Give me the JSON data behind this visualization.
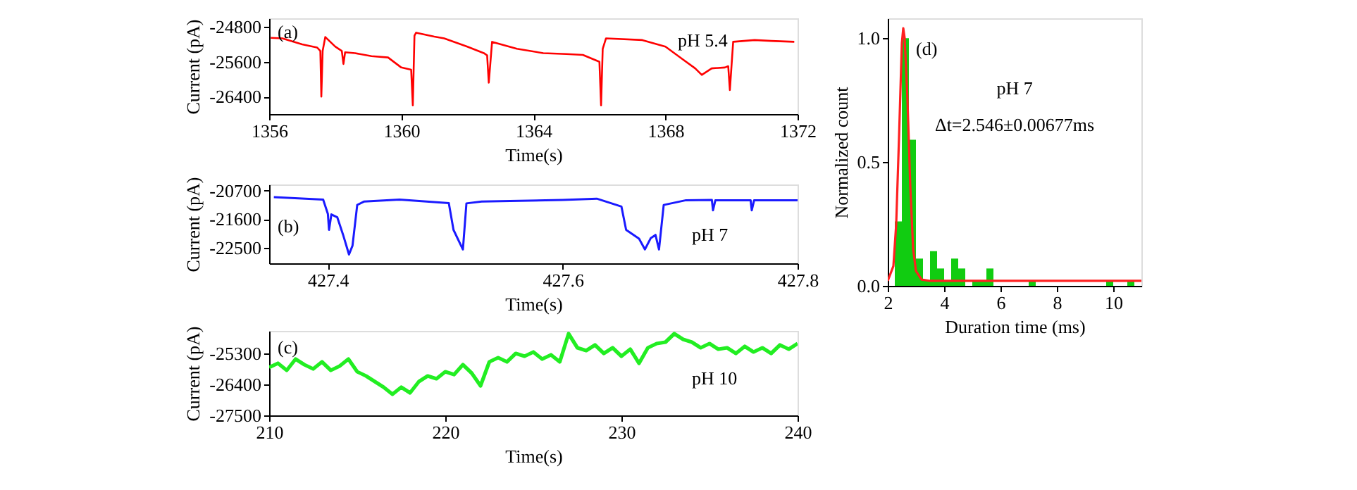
{
  "chart_data": [
    {
      "type": "line",
      "xlabel": "Time(s)",
      "ylabel": "Current (pA)",
      "annotations": [
        "(a)",
        "pH 5.4"
      ],
      "xlim": [
        1356,
        1372
      ],
      "ylim": [
        -26800,
        -24600
      ],
      "xticks": [
        1356,
        1360,
        1364,
        1368,
        1372
      ],
      "yticks": [
        -24800,
        -25600,
        -26400
      ],
      "grid": false,
      "x": [
        1356.05,
        1356.4,
        1357.0,
        1357.45,
        1357.55,
        1357.58,
        1357.62,
        1357.7,
        1358.0,
        1358.2,
        1358.25,
        1358.3,
        1358.6,
        1359.1,
        1359.6,
        1360.0,
        1360.3,
        1360.35,
        1360.4,
        1360.45,
        1361.0,
        1361.3,
        1362.0,
        1362.5,
        1362.6,
        1362.65,
        1362.75,
        1363.5,
        1364.3,
        1365.0,
        1365.5,
        1366.0,
        1366.05,
        1366.1,
        1366.2,
        1367.3,
        1368.0,
        1368.5,
        1368.9,
        1369.1,
        1369.4,
        1369.8,
        1369.9,
        1369.95,
        1370.05,
        1370.7,
        1371.2,
        1371.9
      ],
      "series": [
        {
          "color": "#ff0000",
          "values": [
            -25050,
            -25060,
            -25200,
            -25270,
            -25350,
            -26400,
            -25350,
            -25030,
            -25250,
            -25350,
            -25650,
            -25380,
            -25400,
            -25470,
            -25500,
            -25730,
            -25780,
            -26600,
            -25000,
            -24930,
            -25020,
            -25060,
            -25250,
            -25400,
            -25450,
            -26080,
            -25140,
            -25300,
            -25400,
            -25420,
            -25440,
            -25600,
            -26600,
            -25300,
            -25060,
            -25100,
            -25250,
            -25530,
            -25750,
            -25900,
            -25750,
            -25730,
            -25700,
            -26250,
            -25140,
            -25100,
            -25120,
            -25140
          ]
        }
      ]
    },
    {
      "type": "line",
      "xlabel": "Time(s)",
      "ylabel": "Current (pA)",
      "annotations": [
        "(b)",
        "pH 7"
      ],
      "xlim": [
        427.35,
        427.8
      ],
      "ylim": [
        -23000,
        -20500
      ],
      "xticks": [
        427.4,
        427.6,
        427.8
      ],
      "yticks": [
        -20700,
        -21600,
        -22500
      ],
      "grid": false,
      "x": [
        427.354,
        427.396,
        427.4,
        427.401,
        427.403,
        427.408,
        427.413,
        427.418,
        427.421,
        427.425,
        427.431,
        427.461,
        427.503,
        427.507,
        427.515,
        427.518,
        427.531,
        427.6,
        427.629,
        427.65,
        427.654,
        427.665,
        427.67,
        427.675,
        427.679,
        427.682,
        427.686,
        427.705,
        427.727,
        427.728,
        427.73,
        427.76,
        427.761,
        427.763,
        427.8
      ],
      "series": [
        {
          "color": "#1a1aff",
          "values": [
            -20900,
            -20980,
            -21430,
            -21940,
            -21450,
            -21540,
            -22100,
            -22720,
            -22440,
            -21150,
            -21040,
            -20980,
            -21090,
            -21940,
            -22560,
            -21100,
            -21040,
            -20990,
            -20950,
            -21200,
            -21940,
            -22220,
            -22560,
            -22200,
            -22100,
            -22560,
            -21150,
            -21000,
            -20990,
            -21320,
            -21000,
            -21000,
            -21320,
            -21000,
            -21000
          ]
        }
      ]
    },
    {
      "type": "line",
      "xlabel": "Time(s)",
      "ylabel": "Current (pA)",
      "annotations": [
        "(c)",
        "pH 10"
      ],
      "xlim": [
        210,
        240
      ],
      "ylim": [
        -27500,
        -24500
      ],
      "xticks": [
        210,
        220,
        230,
        240
      ],
      "yticks": [
        -25300,
        -26400,
        -27500
      ],
      "grid": false,
      "x": [
        210,
        210.5,
        211,
        211.5,
        212,
        212.5,
        213,
        213.5,
        214,
        214.5,
        215,
        215.5,
        216,
        216.5,
        217,
        217.5,
        218,
        218.5,
        219,
        219.5,
        220,
        220.5,
        221,
        221.5,
        222,
        222.5,
        223,
        223.5,
        224,
        224.5,
        225,
        225.5,
        226,
        226.5,
        227,
        227.5,
        228,
        228.5,
        229,
        229.5,
        230,
        230.5,
        231,
        231.5,
        232,
        232.5,
        233,
        233.5,
        234,
        234.5,
        235,
        235.5,
        236,
        236.5,
        237,
        237.5,
        238,
        238.5,
        239,
        239.5,
        240
      ],
      "series": [
        {
          "color": "#22ee22",
          "values": [
            -25800,
            -25650,
            -25900,
            -25500,
            -25700,
            -25850,
            -25600,
            -25900,
            -25750,
            -25500,
            -25950,
            -26100,
            -26300,
            -26500,
            -26750,
            -26500,
            -26700,
            -26300,
            -26100,
            -26200,
            -25950,
            -26050,
            -25700,
            -26000,
            -26450,
            -25600,
            -25450,
            -25600,
            -25300,
            -25400,
            -25250,
            -25500,
            -25350,
            -25600,
            -24600,
            -25100,
            -25200,
            -25000,
            -25300,
            -25100,
            -25400,
            -25150,
            -25650,
            -25100,
            -24950,
            -24900,
            -24600,
            -24800,
            -24900,
            -25100,
            -24950,
            -25150,
            -25100,
            -25300,
            -25050,
            -25250,
            -25100,
            -25300,
            -25000,
            -25150,
            -24950
          ]
        }
      ]
    },
    {
      "type": "histogram",
      "xlabel": "Duration time (ms)",
      "ylabel": "Normalized count",
      "annotations": [
        "(d)",
        "pH 7",
        "Δt=2.546±0.00677ms"
      ],
      "xlim": [
        2,
        11
      ],
      "ylim": [
        0,
        1.08
      ],
      "xticks": [
        2,
        4,
        6,
        8,
        10
      ],
      "yticks": [
        {
          "value": 0,
          "label": "0.0"
        },
        0.5,
        {
          "value": 1,
          "label": "1.0"
        }
      ],
      "grid": false,
      "color": "#11cc11",
      "bins": [
        2.25,
        2.5,
        2.75,
        3.0,
        3.25,
        3.5,
        3.75,
        4.0,
        4.25,
        4.5,
        4.75,
        5.0,
        5.25,
        5.5,
        5.75,
        6.0,
        6.25,
        6.5,
        6.75,
        7.0,
        7.25,
        7.5,
        7.75,
        8.0,
        8.25,
        8.5,
        8.75,
        9.0,
        9.25,
        9.5,
        9.75,
        10.0,
        10.25,
        10.5,
        10.75
      ],
      "values": [
        0.26,
        1.0,
        0.59,
        0.11,
        0.02,
        0.14,
        0.07,
        0.02,
        0.11,
        0.07,
        0,
        0.02,
        0.02,
        0.07,
        0,
        0,
        0,
        0,
        0,
        0.02,
        0,
        0,
        0,
        0,
        0,
        0,
        0,
        0,
        0,
        0,
        0.02,
        0,
        0,
        0.02
      ],
      "series": [
        {
          "type": "line",
          "color": "#ff2020",
          "x": [
            2.0,
            2.2,
            2.3,
            2.4,
            2.5,
            2.55,
            2.6,
            2.7,
            2.8,
            2.9,
            3.0,
            3.2,
            3.5,
            11.0
          ],
          "values": [
            0.02,
            0.08,
            0.25,
            0.6,
            0.98,
            1.04,
            1.0,
            0.75,
            0.4,
            0.15,
            0.06,
            0.025,
            0.02,
            0.02
          ]
        }
      ]
    }
  ]
}
